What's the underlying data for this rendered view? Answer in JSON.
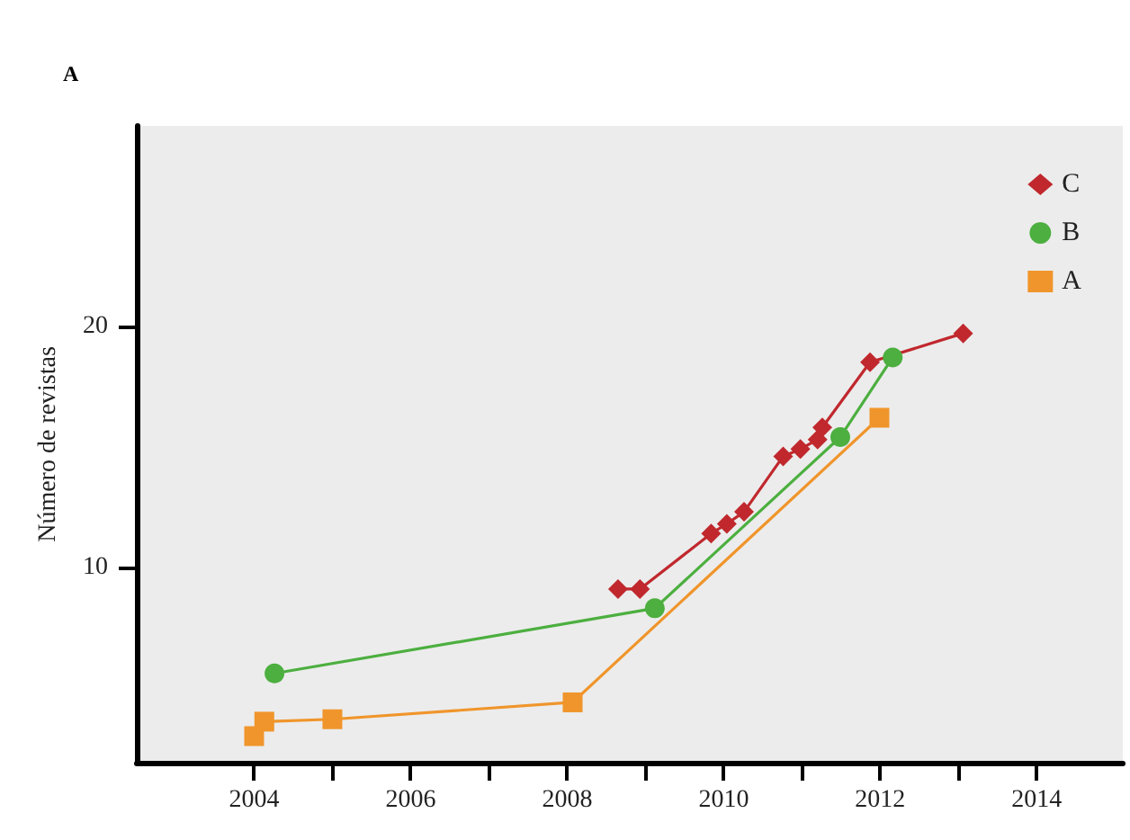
{
  "chart_data": {
    "type": "line",
    "title": "A",
    "ylabel": "Número de revistas",
    "xlim": [
      2002.5,
      2015.1
    ],
    "ylim": [
      1.9,
      28.3
    ],
    "xticks": [
      2004,
      {
        "value": 2005,
        "label": null
      },
      2006,
      {
        "value": 2007,
        "label": null
      },
      2008,
      {
        "value": 2009,
        "label": null
      },
      2010,
      {
        "value": 2011,
        "label": null
      },
      2012,
      {
        "value": 2013,
        "label": null
      },
      2014
    ],
    "yticks": [
      10,
      20
    ],
    "legend": "top right",
    "grid": false,
    "series": [
      {
        "name": "C",
        "color": "#c0282d",
        "marker": "diamond",
        "x": [
          2008.65,
          2008.93,
          2009.84,
          2010.04,
          2010.26,
          2010.76,
          2010.98,
          2011.2,
          2011.26,
          2011.87,
          2013.06
        ],
        "values": [
          9.1,
          9.1,
          11.4,
          11.8,
          12.3,
          14.6,
          14.9,
          15.3,
          15.8,
          18.5,
          19.7
        ]
      },
      {
        "name": "B",
        "color": "#4caf3f",
        "marker": "circle",
        "x": [
          2004.26,
          2009.12,
          2011.49,
          2012.16
        ],
        "values": [
          5.6,
          8.3,
          15.4,
          18.7
        ]
      },
      {
        "name": "A",
        "color": "#f0952b",
        "marker": "square",
        "x": [
          2004.0,
          2004.13,
          2005.0,
          2008.07,
          2011.99
        ],
        "values": [
          3.0,
          3.6,
          3.7,
          4.4,
          16.2
        ]
      }
    ]
  }
}
